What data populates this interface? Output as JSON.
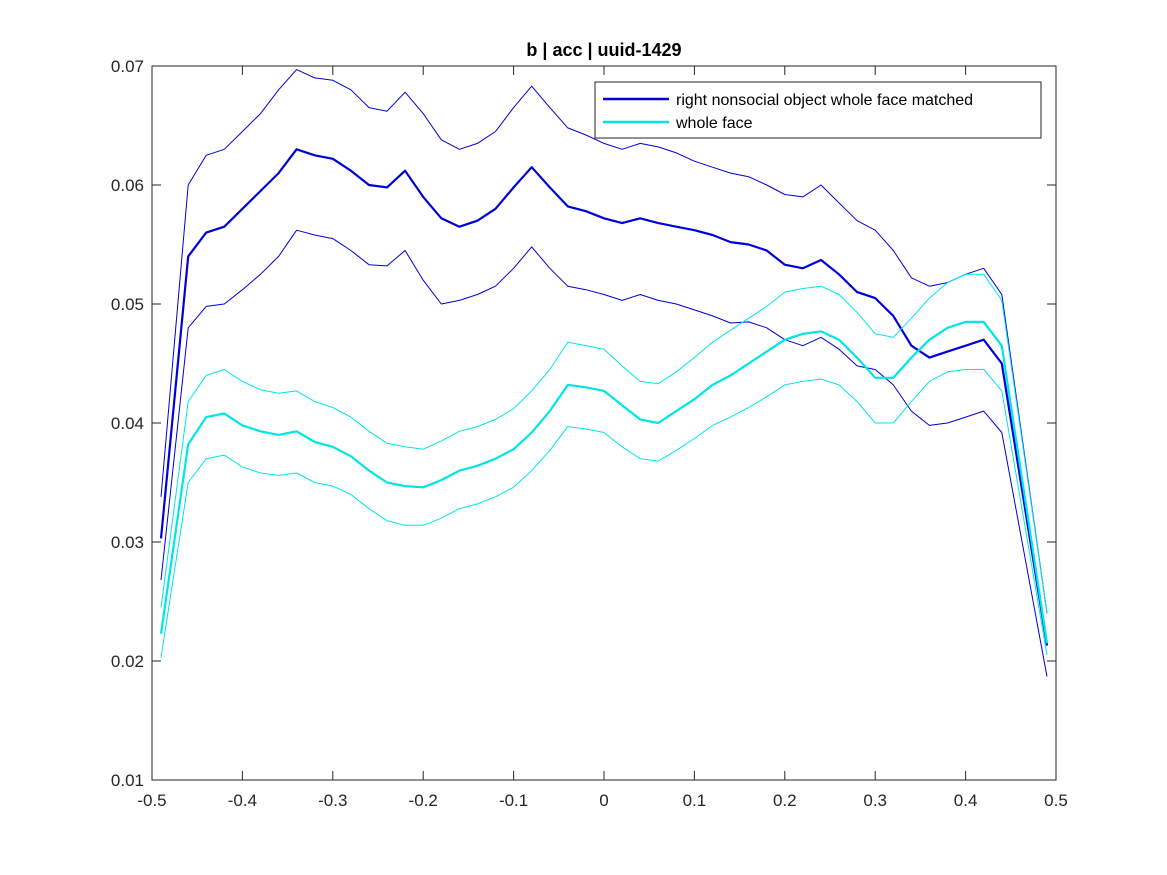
{
  "chart_data": {
    "type": "line",
    "title": "b | acc | uuid-1429",
    "xlabel": "",
    "ylabel": "",
    "xlim": [
      -0.5,
      0.5
    ],
    "ylim": [
      0.01,
      0.07
    ],
    "xticks": [
      -0.5,
      -0.4,
      -0.3,
      -0.2,
      -0.1,
      0,
      0.1,
      0.2,
      0.3,
      0.4,
      0.5
    ],
    "xtick_labels": [
      "-0.5",
      "-0.4",
      "-0.3",
      "-0.2",
      "-0.1",
      "0",
      "0.1",
      "0.2",
      "0.3",
      "0.4",
      "0.5"
    ],
    "yticks": [
      0.01,
      0.02,
      0.03,
      0.04,
      0.05,
      0.06,
      0.07
    ],
    "ytick_labels": [
      "0.01",
      "0.02",
      "0.03",
      "0.04",
      "0.05",
      "0.06",
      "0.07"
    ],
    "grid": false,
    "legend_position": "top-right",
    "legend": [
      "right nonsocial object whole face matched",
      "whole face"
    ],
    "x": [
      -0.49,
      -0.46,
      -0.44,
      -0.42,
      -0.4,
      -0.38,
      -0.36,
      -0.34,
      -0.32,
      -0.3,
      -0.28,
      -0.26,
      -0.24,
      -0.22,
      -0.2,
      -0.18,
      -0.16,
      -0.14,
      -0.12,
      -0.1,
      -0.08,
      -0.06,
      -0.04,
      -0.02,
      0.0,
      0.02,
      0.04,
      0.06,
      0.08,
      0.1,
      0.12,
      0.14,
      0.16,
      0.18,
      0.2,
      0.22,
      0.24,
      0.26,
      0.28,
      0.3,
      0.32,
      0.34,
      0.36,
      0.38,
      0.4,
      0.42,
      0.44,
      0.49
    ],
    "series": [
      {
        "name": "right nonsocial object whole face matched",
        "color": "#0000d8",
        "values": [
          0.0303,
          0.054,
          0.056,
          0.0565,
          0.058,
          0.0595,
          0.061,
          0.063,
          0.0625,
          0.0622,
          0.0612,
          0.06,
          0.0598,
          0.0612,
          0.059,
          0.0572,
          0.0565,
          0.057,
          0.058,
          0.0598,
          0.0615,
          0.0598,
          0.0582,
          0.0578,
          0.0572,
          0.0568,
          0.0572,
          0.0568,
          0.0565,
          0.0562,
          0.0558,
          0.0552,
          0.055,
          0.0545,
          0.0533,
          0.053,
          0.0537,
          0.0525,
          0.051,
          0.0505,
          0.049,
          0.0465,
          0.0455,
          0.046,
          0.0465,
          0.047,
          0.045,
          0.0213
        ],
        "upper": [
          0.0338,
          0.06,
          0.0625,
          0.063,
          0.0645,
          0.066,
          0.068,
          0.0697,
          0.069,
          0.0688,
          0.068,
          0.0665,
          0.0662,
          0.0678,
          0.066,
          0.0638,
          0.063,
          0.0635,
          0.0645,
          0.0665,
          0.0683,
          0.0665,
          0.0648,
          0.0642,
          0.0635,
          0.063,
          0.0635,
          0.0632,
          0.0627,
          0.062,
          0.0615,
          0.061,
          0.0607,
          0.06,
          0.0592,
          0.059,
          0.06,
          0.0585,
          0.057,
          0.0562,
          0.0545,
          0.0522,
          0.0515,
          0.0518,
          0.0525,
          0.053,
          0.0508,
          0.024
        ],
        "lower": [
          0.0268,
          0.048,
          0.0498,
          0.05,
          0.0512,
          0.0525,
          0.054,
          0.0562,
          0.0558,
          0.0555,
          0.0545,
          0.0533,
          0.0532,
          0.0545,
          0.052,
          0.05,
          0.0503,
          0.0508,
          0.0515,
          0.053,
          0.0548,
          0.053,
          0.0515,
          0.0512,
          0.0508,
          0.0503,
          0.0508,
          0.0503,
          0.05,
          0.0495,
          0.049,
          0.0484,
          0.0485,
          0.048,
          0.047,
          0.0465,
          0.0472,
          0.0462,
          0.0448,
          0.0445,
          0.0432,
          0.041,
          0.0398,
          0.04,
          0.0405,
          0.041,
          0.0392,
          0.0187
        ]
      },
      {
        "name": "whole face",
        "color": "#00e6e6",
        "values": [
          0.0223,
          0.0382,
          0.0405,
          0.0408,
          0.0398,
          0.0393,
          0.039,
          0.0393,
          0.0384,
          0.038,
          0.0372,
          0.036,
          0.035,
          0.0347,
          0.0346,
          0.0352,
          0.036,
          0.0364,
          0.037,
          0.0378,
          0.0392,
          0.041,
          0.0432,
          0.043,
          0.0427,
          0.0415,
          0.0403,
          0.04,
          0.041,
          0.042,
          0.0432,
          0.044,
          0.045,
          0.046,
          0.047,
          0.0475,
          0.0477,
          0.047,
          0.0455,
          0.0438,
          0.0438,
          0.0455,
          0.047,
          0.048,
          0.0485,
          0.0485,
          0.0465,
          0.0215
        ],
        "upper": [
          0.0245,
          0.0418,
          0.044,
          0.0445,
          0.0435,
          0.0428,
          0.0425,
          0.0427,
          0.0418,
          0.0413,
          0.0405,
          0.0393,
          0.0383,
          0.038,
          0.0378,
          0.0385,
          0.0393,
          0.0397,
          0.0403,
          0.0412,
          0.0427,
          0.0445,
          0.0468,
          0.0465,
          0.0462,
          0.0448,
          0.0435,
          0.0433,
          0.0443,
          0.0455,
          0.0468,
          0.0478,
          0.0488,
          0.0498,
          0.051,
          0.0513,
          0.0515,
          0.0508,
          0.0493,
          0.0475,
          0.0472,
          0.0488,
          0.0505,
          0.0518,
          0.0525,
          0.0525,
          0.0503,
          0.024
        ],
        "lower": [
          0.0203,
          0.035,
          0.037,
          0.0373,
          0.0363,
          0.0358,
          0.0356,
          0.0358,
          0.035,
          0.0347,
          0.034,
          0.0328,
          0.0318,
          0.0314,
          0.0314,
          0.032,
          0.0328,
          0.0332,
          0.0338,
          0.0346,
          0.036,
          0.0377,
          0.0397,
          0.0395,
          0.0392,
          0.038,
          0.037,
          0.0368,
          0.0377,
          0.0387,
          0.0398,
          0.0405,
          0.0413,
          0.0422,
          0.0432,
          0.0435,
          0.0437,
          0.0432,
          0.0418,
          0.04,
          0.04,
          0.0418,
          0.0435,
          0.0443,
          0.0445,
          0.0445,
          0.0427,
          0.0205
        ]
      }
    ]
  }
}
